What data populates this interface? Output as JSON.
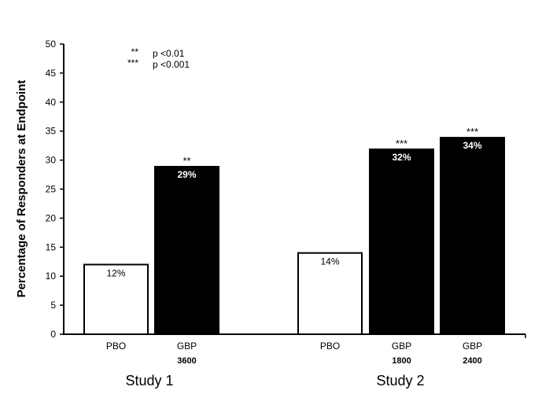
{
  "chart_data": {
    "type": "bar",
    "title": "",
    "xlabel": "",
    "ylabel": "Percentage of Responders at Endpoint",
    "ylim": [
      0,
      50
    ],
    "yticks": [
      0,
      5,
      10,
      15,
      20,
      25,
      30,
      35,
      40,
      45,
      50
    ],
    "grid": false,
    "groups": [
      {
        "name": "Study 1",
        "bars": [
          {
            "label_line1": "PBO",
            "label_line2": "",
            "value": 12,
            "data_label": "12%",
            "significance": "",
            "fill": "#ffffff"
          },
          {
            "label_line1": "GBP",
            "label_line2": "3600",
            "value": 29,
            "data_label": "29%",
            "significance": "**",
            "fill": "#000000"
          }
        ]
      },
      {
        "name": "Study 2",
        "bars": [
          {
            "label_line1": "PBO",
            "label_line2": "",
            "value": 14,
            "data_label": "14%",
            "significance": "",
            "fill": "#ffffff"
          },
          {
            "label_line1": "GBP",
            "label_line2": "1800",
            "value": 32,
            "data_label": "32%",
            "significance": "***",
            "fill": "#000000"
          },
          {
            "label_line1": "GBP",
            "label_line2": "2400",
            "value": 34,
            "data_label": "34%",
            "significance": "***",
            "fill": "#000000"
          }
        ]
      }
    ],
    "annotations": [
      {
        "symbol": "**",
        "text": "p <0.01"
      },
      {
        "symbol": "***",
        "text": "p <0.001"
      }
    ],
    "legend_placement": "top-left"
  }
}
